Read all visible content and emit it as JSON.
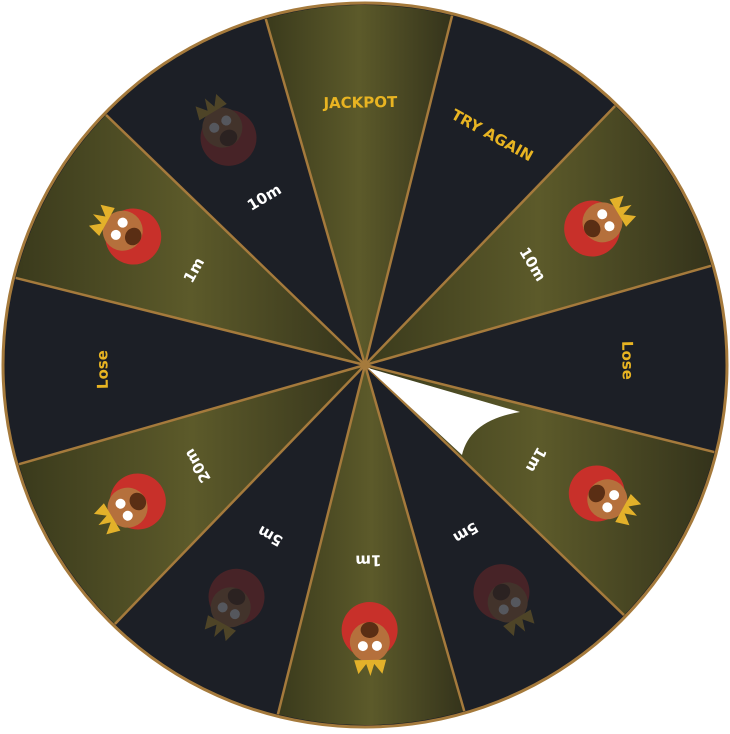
{
  "wheel": {
    "segments": [
      {
        "label": "JACKPOT",
        "fill": "olive",
        "text_color": "#e8b422"
      },
      {
        "label": "TRY AGAIN",
        "fill": "dark",
        "text_color": "#e8b422"
      },
      {
        "label": "10m",
        "fill": "olive",
        "text_color": "#ffffff"
      },
      {
        "label": "Lose",
        "fill": "dark",
        "text_color": "#e8b422"
      },
      {
        "label": "1m",
        "fill": "olive",
        "text_color": "#ffffff"
      },
      {
        "label": "5m",
        "fill": "dark",
        "text_color": "#ffffff"
      },
      {
        "label": "1m",
        "fill": "olive",
        "text_color": "#ffffff"
      },
      {
        "label": "5m",
        "fill": "dark",
        "text_color": "#ffffff"
      },
      {
        "label": "20m",
        "fill": "olive",
        "text_color": "#ffffff"
      },
      {
        "label": "Lose",
        "fill": "dark",
        "text_color": "#e8b422"
      },
      {
        "label": "1m",
        "fill": "olive",
        "text_color": "#ffffff"
      },
      {
        "label": "10m",
        "fill": "dark",
        "text_color": "#ffffff"
      }
    ]
  }
}
